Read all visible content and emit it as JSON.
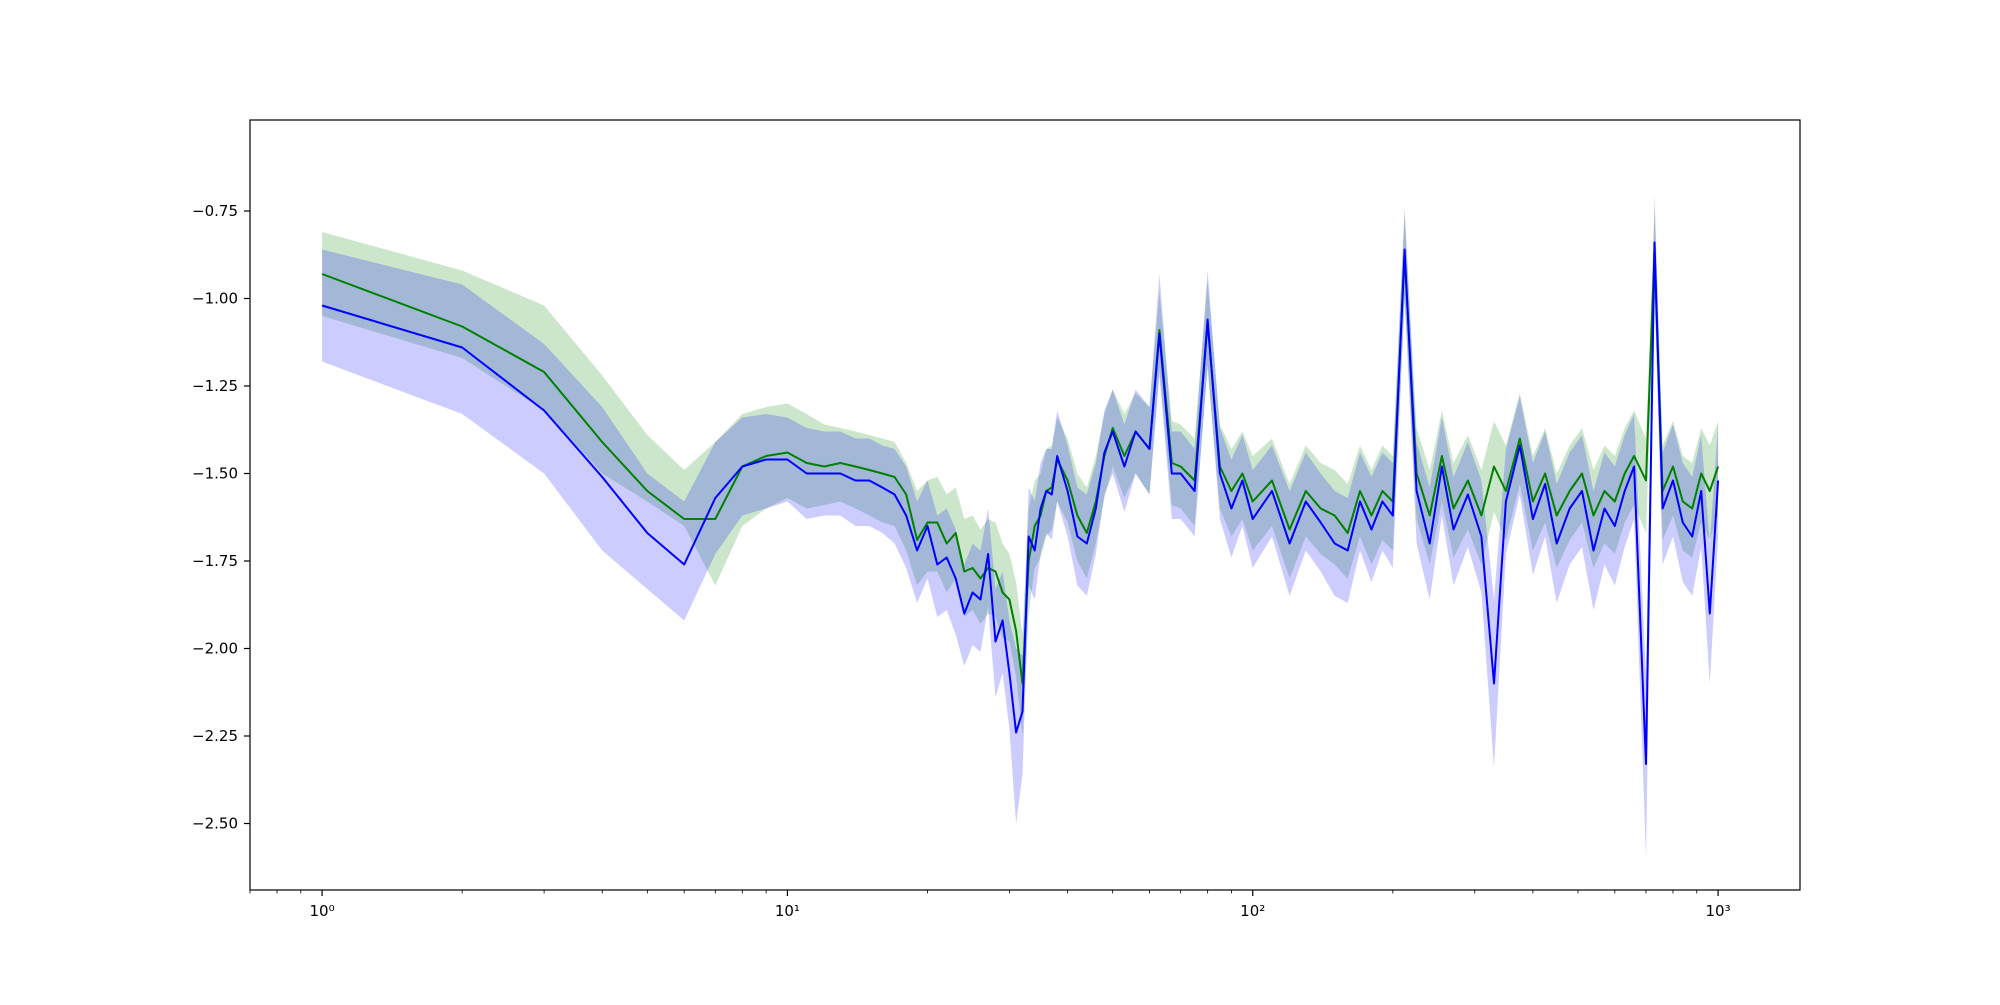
{
  "chart_data": {
    "type": "line",
    "title": "",
    "xlabel": "",
    "ylabel": "",
    "xscale": "log",
    "xlim": [
      0.7,
      1500
    ],
    "ylim": [
      -2.69,
      -0.49
    ],
    "grid": false,
    "legend": "none",
    "x_ticks": [
      {
        "value": 1,
        "label": "10⁰"
      },
      {
        "value": 10,
        "label": "10¹"
      },
      {
        "value": 100,
        "label": "10²"
      },
      {
        "value": 1000,
        "label": "10³"
      }
    ],
    "y_ticks": [
      {
        "value": -0.75,
        "label": "−0.75"
      },
      {
        "value": -1.0,
        "label": "−1.00"
      },
      {
        "value": -1.25,
        "label": "−1.25"
      },
      {
        "value": -1.5,
        "label": "−1.50"
      },
      {
        "value": -1.75,
        "label": "−1.75"
      },
      {
        "value": -2.0,
        "label": "−2.00"
      },
      {
        "value": -2.25,
        "label": "−2.25"
      },
      {
        "value": -2.5,
        "label": "−2.50"
      }
    ],
    "series": [
      {
        "color": "#008000",
        "band_color": "#008000",
        "x": [
          1,
          2,
          3,
          4,
          5,
          6,
          7,
          8,
          9,
          10,
          11,
          12,
          13,
          14,
          15,
          16,
          17,
          18,
          19,
          20,
          21,
          22,
          23,
          24,
          25,
          26,
          27,
          28,
          29,
          30,
          31,
          32,
          33,
          34,
          35,
          36,
          37,
          38,
          40,
          42,
          44,
          46,
          48,
          50,
          53,
          56,
          60,
          63,
          67,
          70,
          75,
          80,
          85,
          90,
          95,
          100,
          110,
          120,
          130,
          140,
          150,
          160,
          170,
          180,
          190,
          200,
          212,
          225,
          240,
          255,
          270,
          290,
          310,
          330,
          350,
          375,
          400,
          425,
          450,
          480,
          510,
          540,
          570,
          600,
          630,
          660,
          700,
          730,
          760,
          800,
          840,
          880,
          920,
          960,
          1000
        ],
        "y": [
          -0.93,
          -1.08,
          -1.21,
          -1.41,
          -1.55,
          -1.63,
          -1.63,
          -1.48,
          -1.45,
          -1.44,
          -1.47,
          -1.48,
          -1.47,
          -1.48,
          -1.49,
          -1.5,
          -1.51,
          -1.56,
          -1.69,
          -1.64,
          -1.64,
          -1.7,
          -1.67,
          -1.78,
          -1.77,
          -1.8,
          -1.77,
          -1.78,
          -1.84,
          -1.86,
          -1.95,
          -2.1,
          -1.75,
          -1.65,
          -1.62,
          -1.55,
          -1.54,
          -1.46,
          -1.52,
          -1.62,
          -1.67,
          -1.58,
          -1.45,
          -1.37,
          -1.45,
          -1.38,
          -1.43,
          -1.09,
          -1.47,
          -1.48,
          -1.52,
          -1.07,
          -1.48,
          -1.55,
          -1.5,
          -1.58,
          -1.52,
          -1.66,
          -1.55,
          -1.6,
          -1.62,
          -1.67,
          -1.55,
          -1.62,
          -1.55,
          -1.58,
          -0.88,
          -1.5,
          -1.62,
          -1.45,
          -1.6,
          -1.52,
          -1.62,
          -1.48,
          -1.55,
          -1.4,
          -1.58,
          -1.5,
          -1.62,
          -1.55,
          -1.5,
          -1.62,
          -1.55,
          -1.58,
          -1.5,
          -1.45,
          -1.52,
          -0.86,
          -1.55,
          -1.48,
          -1.58,
          -1.6,
          -1.5,
          -1.55,
          -1.48
        ],
        "lower": [
          -1.05,
          -1.17,
          -1.32,
          -1.5,
          -1.58,
          -1.65,
          -1.82,
          -1.65,
          -1.6,
          -1.57,
          -1.6,
          -1.59,
          -1.58,
          -1.6,
          -1.62,
          -1.64,
          -1.65,
          -1.72,
          -1.82,
          -1.78,
          -1.78,
          -1.84,
          -1.8,
          -1.91,
          -1.89,
          -1.93,
          -1.9,
          -1.91,
          -1.97,
          -1.98,
          -2.08,
          -2.25,
          -1.9,
          -1.77,
          -1.74,
          -1.68,
          -1.66,
          -1.58,
          -1.64,
          -1.75,
          -1.8,
          -1.7,
          -1.57,
          -1.48,
          -1.57,
          -1.5,
          -1.56,
          -1.2,
          -1.59,
          -1.6,
          -1.65,
          -1.2,
          -1.6,
          -1.68,
          -1.63,
          -1.72,
          -1.65,
          -1.8,
          -1.68,
          -1.73,
          -1.76,
          -1.8,
          -1.68,
          -1.76,
          -1.69,
          -1.72,
          -1.0,
          -1.63,
          -1.76,
          -1.58,
          -1.74,
          -1.66,
          -1.76,
          -1.61,
          -1.69,
          -1.53,
          -1.72,
          -1.64,
          -1.77,
          -1.69,
          -1.64,
          -1.77,
          -1.7,
          -1.73,
          -1.64,
          -1.59,
          -1.67,
          -0.98,
          -1.69,
          -1.62,
          -1.72,
          -1.74,
          -1.64,
          -1.69,
          -1.62
        ],
        "upper": [
          -0.81,
          -0.92,
          -1.02,
          -1.22,
          -1.39,
          -1.49,
          -1.41,
          -1.33,
          -1.31,
          -1.3,
          -1.33,
          -1.36,
          -1.37,
          -1.38,
          -1.39,
          -1.4,
          -1.41,
          -1.47,
          -1.55,
          -1.52,
          -1.51,
          -1.56,
          -1.54,
          -1.63,
          -1.62,
          -1.66,
          -1.63,
          -1.64,
          -1.7,
          -1.73,
          -1.81,
          -1.96,
          -1.6,
          -1.52,
          -1.5,
          -1.43,
          -1.42,
          -1.34,
          -1.4,
          -1.5,
          -1.54,
          -1.45,
          -1.33,
          -1.26,
          -1.33,
          -1.27,
          -1.31,
          -0.98,
          -1.35,
          -1.36,
          -1.4,
          -0.95,
          -1.36,
          -1.43,
          -1.38,
          -1.45,
          -1.4,
          -1.53,
          -1.42,
          -1.47,
          -1.49,
          -1.53,
          -1.42,
          -1.49,
          -1.42,
          -1.45,
          -0.76,
          -1.37,
          -1.49,
          -1.32,
          -1.47,
          -1.39,
          -1.49,
          -1.35,
          -1.42,
          -1.27,
          -1.45,
          -1.37,
          -1.5,
          -1.42,
          -1.37,
          -1.49,
          -1.42,
          -1.45,
          -1.37,
          -1.32,
          -1.4,
          -0.74,
          -1.42,
          -1.35,
          -1.45,
          -1.47,
          -1.37,
          -1.42,
          -1.35
        ]
      },
      {
        "color": "#0000ff",
        "band_color": "#0000ff",
        "x": [
          1,
          2,
          3,
          4,
          5,
          6,
          7,
          8,
          9,
          10,
          11,
          12,
          13,
          14,
          15,
          16,
          17,
          18,
          19,
          20,
          21,
          22,
          23,
          24,
          25,
          26,
          27,
          28,
          29,
          30,
          31,
          32,
          33,
          34,
          35,
          36,
          37,
          38,
          40,
          42,
          44,
          46,
          48,
          50,
          53,
          56,
          60,
          63,
          67,
          70,
          75,
          80,
          85,
          90,
          95,
          100,
          110,
          120,
          130,
          140,
          150,
          160,
          170,
          180,
          190,
          200,
          212,
          225,
          240,
          255,
          270,
          290,
          310,
          330,
          350,
          375,
          400,
          425,
          450,
          480,
          510,
          540,
          570,
          600,
          630,
          660,
          700,
          730,
          760,
          800,
          840,
          880,
          920,
          960,
          1000
        ],
        "y": [
          -1.02,
          -1.14,
          -1.32,
          -1.51,
          -1.67,
          -1.76,
          -1.57,
          -1.48,
          -1.46,
          -1.46,
          -1.5,
          -1.5,
          -1.5,
          -1.52,
          -1.52,
          -1.54,
          -1.56,
          -1.62,
          -1.72,
          -1.65,
          -1.76,
          -1.74,
          -1.8,
          -1.9,
          -1.84,
          -1.86,
          -1.73,
          -1.98,
          -1.92,
          -2.07,
          -2.24,
          -2.18,
          -1.68,
          -1.72,
          -1.6,
          -1.55,
          -1.56,
          -1.45,
          -1.55,
          -1.68,
          -1.7,
          -1.6,
          -1.44,
          -1.38,
          -1.48,
          -1.38,
          -1.43,
          -1.1,
          -1.5,
          -1.5,
          -1.55,
          -1.06,
          -1.5,
          -1.6,
          -1.52,
          -1.63,
          -1.55,
          -1.7,
          -1.58,
          -1.64,
          -1.7,
          -1.72,
          -1.58,
          -1.66,
          -1.58,
          -1.62,
          -0.86,
          -1.55,
          -1.7,
          -1.48,
          -1.66,
          -1.56,
          -1.68,
          -2.1,
          -1.58,
          -1.42,
          -1.63,
          -1.53,
          -1.7,
          -1.6,
          -1.55,
          -1.72,
          -1.6,
          -1.65,
          -1.55,
          -1.48,
          -2.33,
          -0.84,
          -1.6,
          -1.52,
          -1.64,
          -1.68,
          -1.55,
          -1.9,
          -1.52
        ],
        "lower": [
          -1.18,
          -1.33,
          -1.5,
          -1.72,
          -1.83,
          -1.92,
          -1.73,
          -1.62,
          -1.6,
          -1.58,
          -1.63,
          -1.62,
          -1.62,
          -1.65,
          -1.65,
          -1.67,
          -1.7,
          -1.77,
          -1.87,
          -1.8,
          -1.91,
          -1.89,
          -1.96,
          -2.05,
          -1.99,
          -2.01,
          -1.88,
          -2.14,
          -2.07,
          -2.23,
          -2.5,
          -2.36,
          -1.82,
          -1.86,
          -1.73,
          -1.67,
          -1.69,
          -1.58,
          -1.68,
          -1.82,
          -1.85,
          -1.73,
          -1.56,
          -1.5,
          -1.61,
          -1.5,
          -1.56,
          -1.22,
          -1.63,
          -1.63,
          -1.68,
          -1.19,
          -1.63,
          -1.74,
          -1.65,
          -1.77,
          -1.68,
          -1.85,
          -1.72,
          -1.78,
          -1.85,
          -1.87,
          -1.72,
          -1.81,
          -1.72,
          -1.77,
          -1.0,
          -1.7,
          -1.86,
          -1.62,
          -1.82,
          -1.71,
          -1.84,
          -2.34,
          -1.73,
          -1.56,
          -1.79,
          -1.68,
          -1.87,
          -1.76,
          -1.71,
          -1.89,
          -1.76,
          -1.82,
          -1.71,
          -1.63,
          -2.6,
          -0.98,
          -1.76,
          -1.68,
          -1.81,
          -1.85,
          -1.71,
          -2.1,
          -1.68
        ],
        "upper": [
          -0.86,
          -0.96,
          -1.13,
          -1.31,
          -1.5,
          -1.58,
          -1.41,
          -1.34,
          -1.33,
          -1.34,
          -1.37,
          -1.38,
          -1.38,
          -1.4,
          -1.4,
          -1.42,
          -1.43,
          -1.48,
          -1.58,
          -1.52,
          -1.62,
          -1.6,
          -1.66,
          -1.76,
          -1.7,
          -1.72,
          -1.6,
          -1.83,
          -1.78,
          -1.92,
          -2.0,
          -2.02,
          -1.54,
          -1.58,
          -1.47,
          -1.43,
          -1.43,
          -1.32,
          -1.42,
          -1.54,
          -1.56,
          -1.47,
          -1.32,
          -1.26,
          -1.36,
          -1.26,
          -1.31,
          -0.93,
          -1.38,
          -1.38,
          -1.43,
          -0.92,
          -1.37,
          -1.46,
          -1.39,
          -1.49,
          -1.42,
          -1.55,
          -1.44,
          -1.5,
          -1.55,
          -1.57,
          -1.44,
          -1.51,
          -1.44,
          -1.47,
          -0.74,
          -1.41,
          -1.54,
          -1.34,
          -1.51,
          -1.41,
          -1.52,
          -1.86,
          -1.43,
          -1.28,
          -1.47,
          -1.38,
          -1.53,
          -1.44,
          -1.39,
          -1.55,
          -1.44,
          -1.48,
          -1.39,
          -1.33,
          -2.08,
          -0.7,
          -1.44,
          -1.36,
          -1.47,
          -1.51,
          -1.39,
          -1.7,
          -1.36
        ]
      }
    ]
  }
}
